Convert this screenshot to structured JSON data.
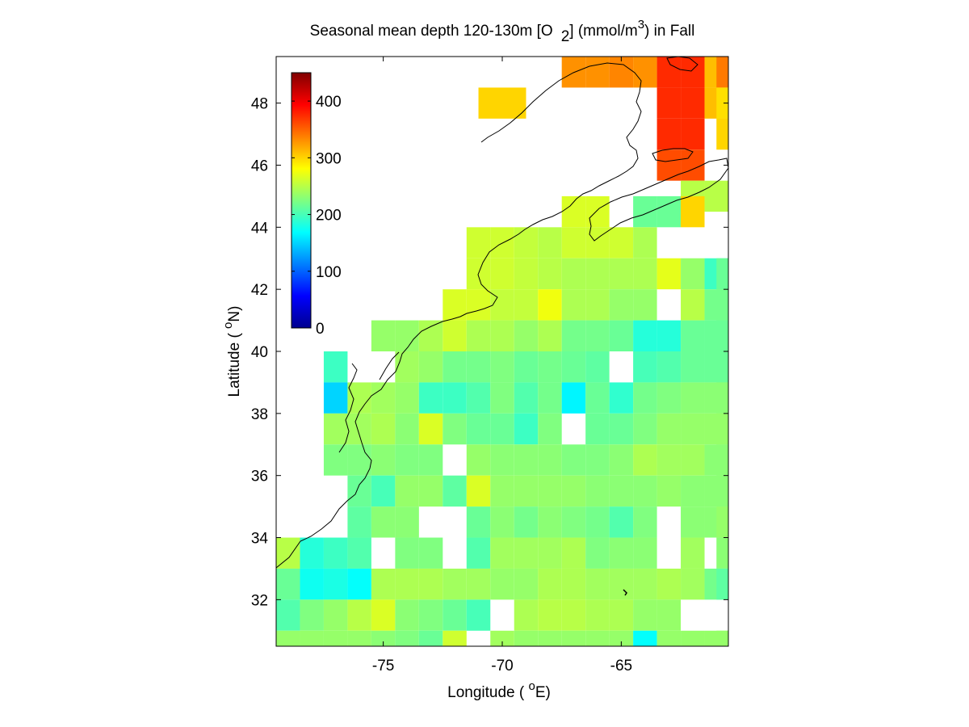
{
  "chart_data": {
    "type": "heatmap",
    "title_main": "Seasonal mean depth 120-130m [O",
    "title_sub": "2",
    "title_mid": "] (mmol/m",
    "title_sup": "3",
    "title_end": ") in  Fall",
    "xlabel_main": "Longitude ( ",
    "xlabel_sup": "o",
    "xlabel_end": "E)",
    "ylabel_main": "Latitude ( ",
    "ylabel_sup": "o",
    "ylabel_end": "N)",
    "xlim": [
      -79.5,
      -60.5
    ],
    "ylim": [
      30.5,
      49.5
    ],
    "x_ticks": [
      -75,
      -70,
      -65
    ],
    "y_ticks": [
      32,
      34,
      36,
      38,
      40,
      42,
      44,
      46,
      48
    ],
    "colorbar": {
      "ticks": [
        0,
        100,
        200,
        300,
        400
      ],
      "lim": [
        0,
        450
      ],
      "colormap": "jet",
      "placement": "upper-left inside"
    },
    "cell_size_deg": 1,
    "grid": false,
    "rows": [
      {
        "lat": 49,
        "cells": [
          [
            -67,
            330
          ],
          [
            -66,
            330
          ],
          [
            -65,
            335
          ],
          [
            -64,
            330
          ],
          [
            -63,
            375
          ],
          [
            -62,
            375
          ],
          [
            -61,
            310
          ],
          [
            -60.5,
            340
          ]
        ]
      },
      {
        "lat": 48,
        "cells": [
          [
            -70.5,
            300
          ],
          [
            -69.5,
            300
          ],
          [
            -63,
            375
          ],
          [
            -62,
            375
          ],
          [
            -61,
            310
          ],
          [
            -60.5,
            295
          ]
        ]
      },
      {
        "lat": 47,
        "cells": [
          [
            -63,
            375
          ],
          [
            -62,
            375
          ],
          [
            -60.5,
            300
          ]
        ]
      },
      {
        "lat": 46,
        "cells": [
          [
            -63,
            360
          ],
          [
            -62,
            360
          ]
        ]
      },
      {
        "lat": 45,
        "cells": [
          [
            -62,
            250
          ],
          [
            -61,
            250
          ]
        ]
      },
      {
        "lat": 44.5,
        "cells": [
          [
            -67,
            265
          ],
          [
            -66,
            265
          ],
          [
            -64,
            215
          ],
          [
            -63,
            215
          ],
          [
            -62,
            300
          ]
        ]
      },
      {
        "lat": 43.5,
        "cells": [
          [
            -71,
            260
          ],
          [
            -70,
            260
          ],
          [
            -69,
            255
          ],
          [
            -68,
            250
          ],
          [
            -67,
            260
          ],
          [
            -66,
            260
          ],
          [
            -65,
            260
          ],
          [
            -64,
            245
          ]
        ]
      },
      {
        "lat": 42.5,
        "cells": [
          [
            -71,
            260
          ],
          [
            -70,
            260
          ],
          [
            -69,
            255
          ],
          [
            -68,
            250
          ],
          [
            -67,
            245
          ],
          [
            -66,
            245
          ],
          [
            -65,
            245
          ],
          [
            -64,
            245
          ],
          [
            -63,
            270
          ],
          [
            -62,
            235
          ],
          [
            -61,
            195
          ],
          [
            -60.5,
            215
          ]
        ]
      },
      {
        "lat": 41.5,
        "cells": [
          [
            -72,
            265
          ],
          [
            -71,
            265
          ],
          [
            -70,
            255
          ],
          [
            -69,
            255
          ],
          [
            -68,
            275
          ],
          [
            -67,
            245
          ],
          [
            -66,
            245
          ],
          [
            -65,
            235
          ],
          [
            -64,
            235
          ],
          [
            -62,
            250
          ],
          [
            -61,
            220
          ],
          [
            -60.5,
            220
          ]
        ]
      },
      {
        "lat": 40.5,
        "cells": [
          [
            -75,
            235
          ],
          [
            -74,
            235
          ],
          [
            -73,
            245
          ],
          [
            -72,
            260
          ],
          [
            -71,
            245
          ],
          [
            -70,
            245
          ],
          [
            -69,
            235
          ],
          [
            -68,
            245
          ],
          [
            -67,
            220
          ],
          [
            -66,
            220
          ],
          [
            -65,
            215
          ],
          [
            -64,
            185
          ],
          [
            -63,
            185
          ],
          [
            -62,
            215
          ],
          [
            -61,
            215
          ],
          [
            -60.5,
            215
          ]
        ]
      },
      {
        "lat": 39.5,
        "cells": [
          [
            -77,
            195
          ],
          [
            -74,
            240
          ],
          [
            -73,
            235
          ],
          [
            -72,
            220
          ],
          [
            -71,
            220
          ],
          [
            -70,
            225
          ],
          [
            -69,
            215
          ],
          [
            -68,
            220
          ],
          [
            -67,
            215
          ],
          [
            -66,
            210
          ],
          [
            -64,
            200
          ],
          [
            -63,
            205
          ],
          [
            -62,
            215
          ],
          [
            -61,
            215
          ],
          [
            -60.5,
            215
          ]
        ]
      },
      {
        "lat": 38.5,
        "cells": [
          [
            -77,
            150
          ],
          [
            -76,
            245
          ],
          [
            -75,
            240
          ],
          [
            -74,
            235
          ],
          [
            -73,
            195
          ],
          [
            -72,
            195
          ],
          [
            -71,
            205
          ],
          [
            -70,
            225
          ],
          [
            -69,
            205
          ],
          [
            -68,
            220
          ],
          [
            -67,
            165
          ],
          [
            -66,
            215
          ],
          [
            -65,
            190
          ],
          [
            -64,
            220
          ],
          [
            -63,
            225
          ],
          [
            -62,
            230
          ],
          [
            -61,
            230
          ],
          [
            -60.5,
            230
          ]
        ]
      },
      {
        "lat": 37.5,
        "cells": [
          [
            -77,
            240
          ],
          [
            -76,
            240
          ],
          [
            -75,
            245
          ],
          [
            -74,
            230
          ],
          [
            -73,
            265
          ],
          [
            -72,
            225
          ],
          [
            -71,
            215
          ],
          [
            -70,
            215
          ],
          [
            -69,
            195
          ],
          [
            -68,
            225
          ],
          [
            -66,
            215
          ],
          [
            -65,
            215
          ],
          [
            -64,
            225
          ],
          [
            -63,
            235
          ],
          [
            -62,
            235
          ],
          [
            -61,
            235
          ],
          [
            -60.5,
            235
          ]
        ]
      },
      {
        "lat": 36.5,
        "cells": [
          [
            -77,
            225
          ],
          [
            -76,
            225
          ],
          [
            -75,
            230
          ],
          [
            -74,
            225
          ],
          [
            -73,
            225
          ],
          [
            -71,
            235
          ],
          [
            -70,
            230
          ],
          [
            -69,
            230
          ],
          [
            -68,
            230
          ],
          [
            -67,
            225
          ],
          [
            -66,
            225
          ],
          [
            -65,
            230
          ],
          [
            -64,
            245
          ],
          [
            -63,
            240
          ],
          [
            -62,
            240
          ],
          [
            -61,
            230
          ],
          [
            -60.5,
            230
          ]
        ]
      },
      {
        "lat": 35.5,
        "cells": [
          [
            -76,
            215
          ],
          [
            -75,
            200
          ],
          [
            -74,
            235
          ],
          [
            -73,
            235
          ],
          [
            -72,
            210
          ],
          [
            -71,
            265
          ],
          [
            -70,
            235
          ],
          [
            -69,
            235
          ],
          [
            -68,
            235
          ],
          [
            -67,
            235
          ],
          [
            -66,
            230
          ],
          [
            -65,
            230
          ],
          [
            -64,
            230
          ],
          [
            -63,
            235
          ],
          [
            -62,
            230
          ],
          [
            -61,
            230
          ],
          [
            -60.5,
            230
          ]
        ]
      },
      {
        "lat": 34.5,
        "cells": [
          [
            -76,
            210
          ],
          [
            -75,
            230
          ],
          [
            -74,
            230
          ],
          [
            -71,
            215
          ],
          [
            -70,
            230
          ],
          [
            -69,
            220
          ],
          [
            -68,
            230
          ],
          [
            -67,
            225
          ],
          [
            -66,
            220
          ],
          [
            -65,
            205
          ],
          [
            -64,
            225
          ],
          [
            -62,
            230
          ],
          [
            -61,
            230
          ],
          [
            -60.5,
            235
          ]
        ]
      },
      {
        "lat": 33.5,
        "cells": [
          [
            -79,
            250
          ],
          [
            -78,
            185
          ],
          [
            -77,
            195
          ],
          [
            -76,
            205
          ],
          [
            -74,
            225
          ],
          [
            -73,
            225
          ],
          [
            -71,
            205
          ],
          [
            -70,
            240
          ],
          [
            -69,
            240
          ],
          [
            -68,
            240
          ],
          [
            -67,
            245
          ],
          [
            -66,
            225
          ],
          [
            -65,
            230
          ],
          [
            -64,
            230
          ],
          [
            -62,
            240
          ],
          [
            -60.5,
            230
          ]
        ]
      },
      {
        "lat": 32.5,
        "cells": [
          [
            -79,
            215
          ],
          [
            -78,
            175
          ],
          [
            -77,
            180
          ],
          [
            -76,
            170
          ],
          [
            -75,
            245
          ],
          [
            -74,
            245
          ],
          [
            -73,
            245
          ],
          [
            -72,
            240
          ],
          [
            -71,
            240
          ],
          [
            -70,
            235
          ],
          [
            -69,
            235
          ],
          [
            -68,
            245
          ],
          [
            -67,
            245
          ],
          [
            -66,
            240
          ],
          [
            -65,
            240
          ],
          [
            -64,
            240
          ],
          [
            -63,
            245
          ],
          [
            -62,
            240
          ],
          [
            -61,
            220
          ],
          [
            -60.5,
            210
          ]
        ]
      },
      {
        "lat": 31.5,
        "cells": [
          [
            -79,
            205
          ],
          [
            -78,
            225
          ],
          [
            -77,
            235
          ],
          [
            -76,
            250
          ],
          [
            -75,
            265
          ],
          [
            -74,
            230
          ],
          [
            -73,
            225
          ],
          [
            -72,
            215
          ],
          [
            -71,
            200
          ],
          [
            -69,
            245
          ],
          [
            -68,
            250
          ],
          [
            -67,
            250
          ],
          [
            -66,
            245
          ],
          [
            -65,
            245
          ],
          [
            -64,
            235
          ],
          [
            -63,
            235
          ]
        ]
      },
      {
        "lat": 30.5,
        "cells": [
          [
            -79,
            235
          ],
          [
            -78,
            235
          ],
          [
            -77,
            235
          ],
          [
            -76,
            235
          ],
          [
            -75,
            230
          ],
          [
            -74,
            225
          ],
          [
            -73,
            215
          ],
          [
            -72,
            260
          ],
          [
            -70,
            240
          ],
          [
            -69,
            235
          ],
          [
            -68,
            235
          ],
          [
            -67,
            235
          ],
          [
            -66,
            235
          ],
          [
            -65,
            235
          ],
          [
            -64,
            170
          ],
          [
            -63,
            235
          ],
          [
            -62,
            235
          ],
          [
            -61,
            235
          ],
          [
            -60.5,
            235
          ]
        ]
      }
    ]
  }
}
